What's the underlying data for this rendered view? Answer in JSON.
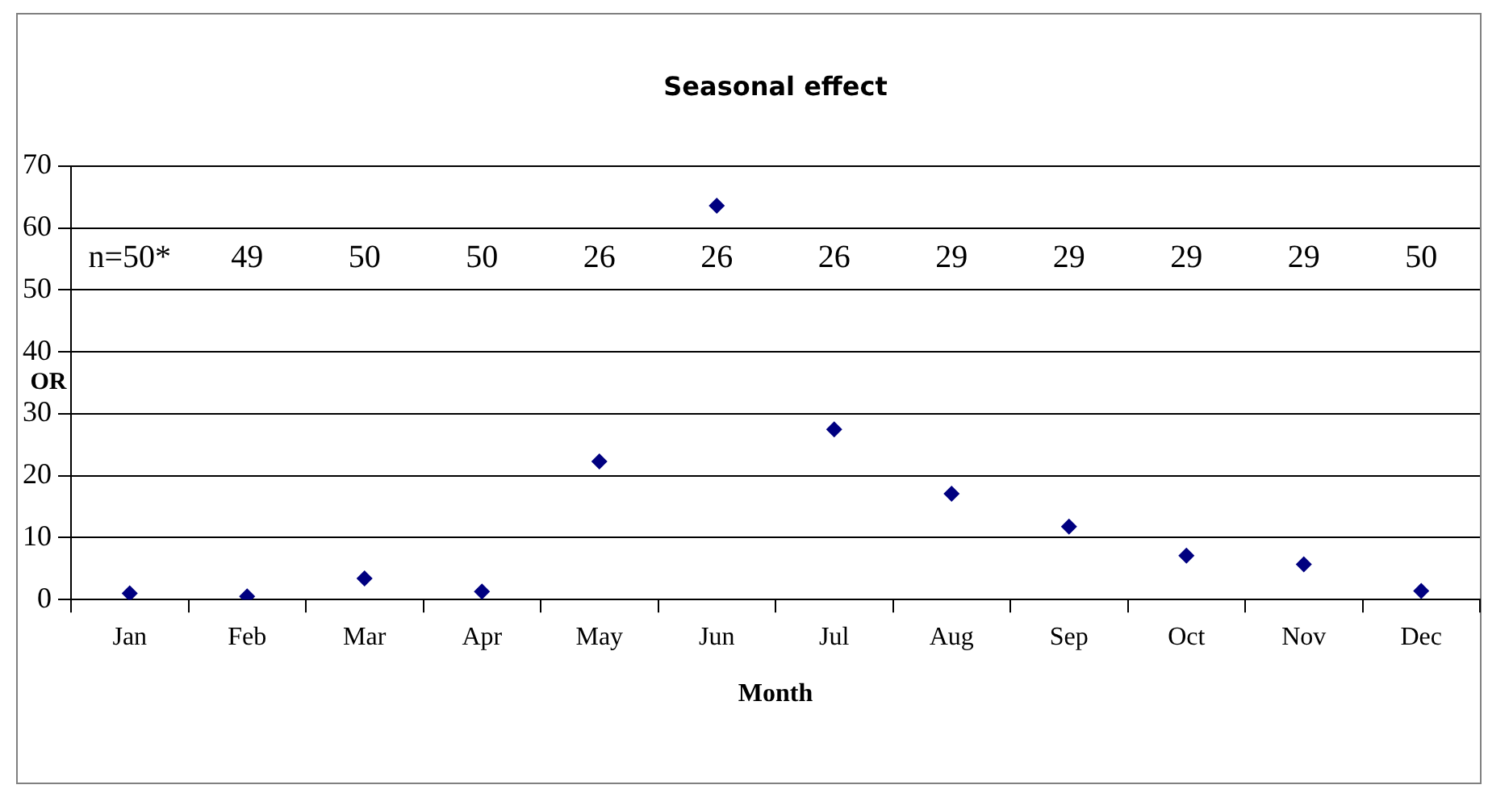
{
  "chart_data": {
    "type": "scatter",
    "title": "Seasonal effect",
    "xlabel": "Month",
    "ylabel": "OR",
    "categories": [
      "Jan",
      "Feb",
      "Mar",
      "Apr",
      "May",
      "Jun",
      "Jul",
      "Aug",
      "Sep",
      "Oct",
      "Nov",
      "Dec"
    ],
    "series": [
      {
        "color": "#000080",
        "values": [
          1.0,
          0.5,
          3.4,
          1.3,
          22.3,
          63.6,
          27.5,
          17.1,
          11.8,
          7.1,
          5.7,
          1.4
        ]
      }
    ],
    "ylim": [
      0,
      70
    ],
    "yticks": [
      0,
      10,
      20,
      30,
      40,
      50,
      60,
      70
    ],
    "grid": "y",
    "legend": false,
    "marker": "diamond",
    "annotations": [
      "n=50*",
      "49",
      "50",
      "50",
      "26",
      "26",
      "26",
      "29",
      "29",
      "29",
      "29",
      "50"
    ]
  }
}
